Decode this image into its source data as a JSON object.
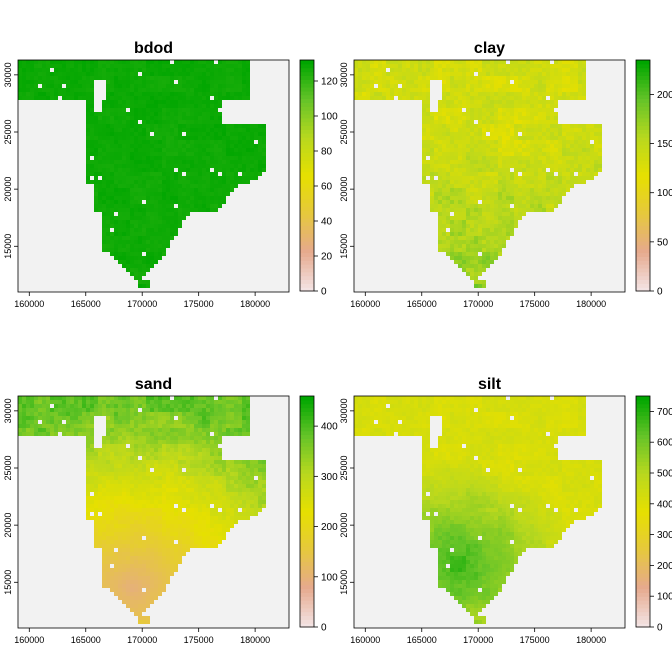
{
  "figure": {
    "background_color": "#f2f2f2",
    "na_color": "#f2f2f2",
    "palette": [
      "#f3e3e3",
      "#e6a98d",
      "#e6c83d",
      "#e6e000",
      "#b9d81e",
      "#66c428",
      "#00a600"
    ]
  },
  "chart_data": [
    {
      "type": "heatmap",
      "title": "bdod",
      "x_ticks": [
        "160000",
        "165000",
        "170000",
        "175000",
        "180000"
      ],
      "y_ticks": [
        "15000",
        "20000",
        "25000",
        "30000"
      ],
      "xlim": [
        159000,
        183000
      ],
      "ylim": [
        11000,
        31300
      ],
      "colorbar": {
        "min": 0,
        "max": 132,
        "ticks": [
          "0",
          "20",
          "40",
          "60",
          "80",
          "100",
          "120"
        ]
      },
      "pattern": "uniform",
      "value_range": [
        118,
        132
      ]
    },
    {
      "type": "heatmap",
      "title": "clay",
      "x_ticks": [
        "160000",
        "165000",
        "170000",
        "175000",
        "180000"
      ],
      "y_ticks": [
        "15000",
        "20000",
        "25000",
        "30000"
      ],
      "xlim": [
        159000,
        183000
      ],
      "ylim": [
        11000,
        31300
      ],
      "colorbar": {
        "min": 0,
        "max": 235,
        "ticks": [
          "0",
          "50",
          "100",
          "150",
          "200"
        ]
      },
      "pattern": "south-high",
      "value_range": [
        95,
        215
      ]
    },
    {
      "type": "heatmap",
      "title": "sand",
      "x_ticks": [
        "160000",
        "165000",
        "170000",
        "175000",
        "180000"
      ],
      "y_ticks": [
        "15000",
        "20000",
        "25000",
        "30000"
      ],
      "xlim": [
        159000,
        183000
      ],
      "ylim": [
        11000,
        31300
      ],
      "colorbar": {
        "min": 0,
        "max": 460,
        "ticks": [
          "0",
          "100",
          "200",
          "300",
          "400"
        ]
      },
      "pattern": "southwest-low",
      "value_range": [
        80,
        420
      ]
    },
    {
      "type": "heatmap",
      "title": "silt",
      "x_ticks": [
        "160000",
        "165000",
        "170000",
        "175000",
        "180000"
      ],
      "y_ticks": [
        "15000",
        "20000",
        "25000",
        "30000"
      ],
      "xlim": [
        159000,
        183000
      ],
      "ylim": [
        11000,
        31300
      ],
      "colorbar": {
        "min": 0,
        "max": 750,
        "ticks": [
          "0",
          "100",
          "200",
          "300",
          "400",
          "500",
          "600",
          "700"
        ]
      },
      "pattern": "southwest-high",
      "value_range": [
        380,
        720
      ]
    }
  ]
}
